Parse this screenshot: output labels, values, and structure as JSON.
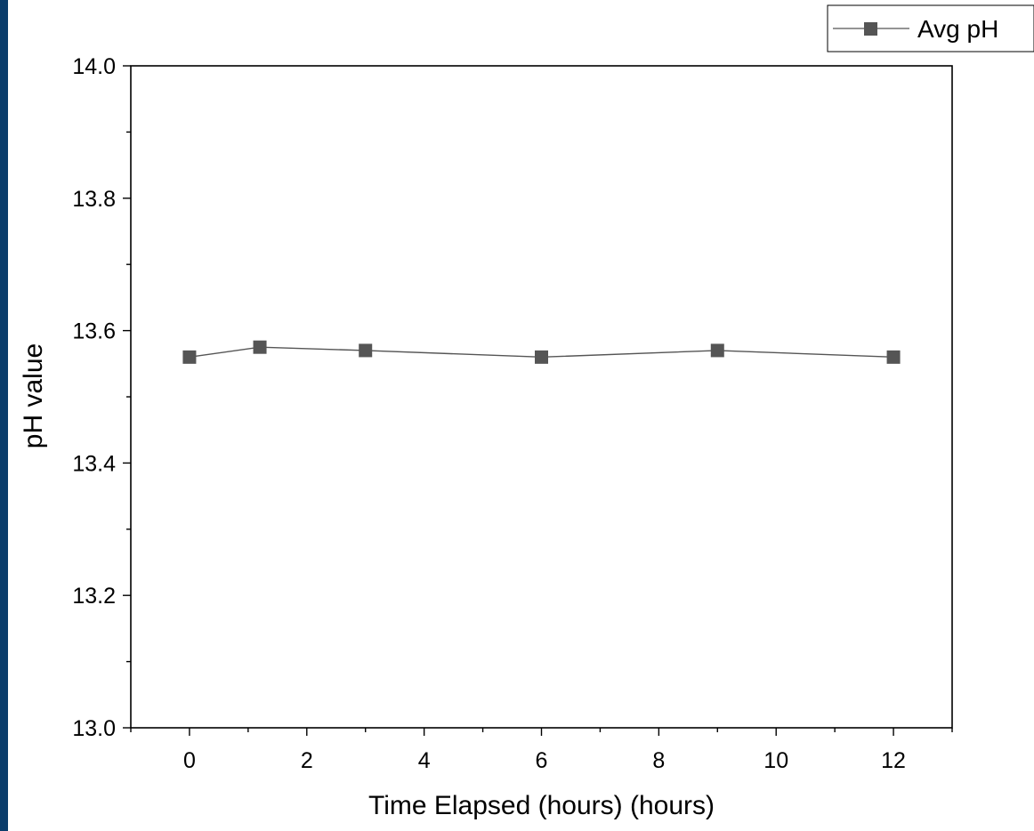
{
  "colors": {
    "frame_border": "#0b3d6b",
    "series": "#555555",
    "axis": "#000000"
  },
  "chart_data": {
    "type": "line",
    "title": "",
    "xlabel": "Time Elapsed (hours) (hours)",
    "ylabel": "pH value",
    "xlim": [
      -1,
      13
    ],
    "ylim": [
      13.0,
      14.0
    ],
    "xticks": [
      0,
      2,
      4,
      6,
      8,
      10,
      12
    ],
    "xtick_labels": [
      "0",
      "2",
      "4",
      "6",
      "8",
      "10",
      "12"
    ],
    "yticks": [
      13.0,
      13.2,
      13.4,
      13.6,
      13.8,
      14.0
    ],
    "ytick_labels": [
      "13.0",
      "13.2",
      "13.4",
      "13.6",
      "13.8",
      "14.0"
    ],
    "grid": false,
    "legend_position": "top-right",
    "marker": "square",
    "series": [
      {
        "name": "Avg pH",
        "x": [
          0,
          1.2,
          3,
          6,
          9,
          12
        ],
        "y": [
          13.56,
          13.575,
          13.57,
          13.56,
          13.57,
          13.56
        ]
      }
    ]
  }
}
